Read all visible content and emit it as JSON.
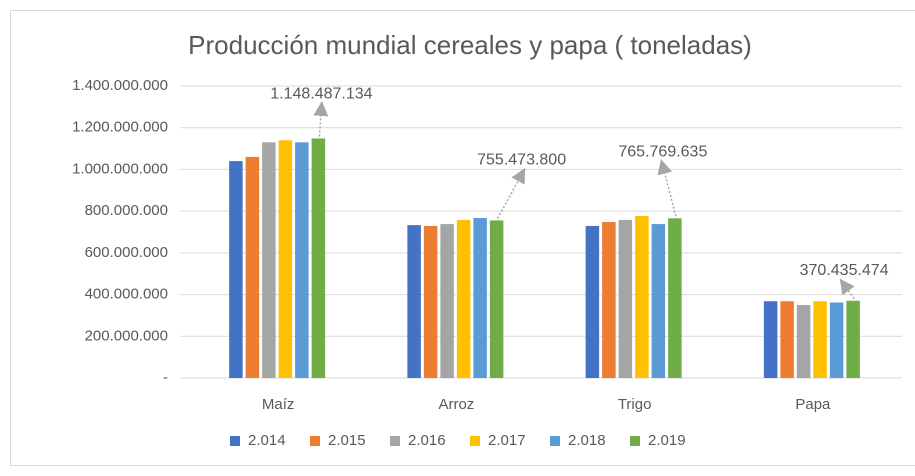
{
  "chart_data": {
    "type": "bar",
    "title": "Producción mundial cereales y papa ( toneladas)",
    "categories": [
      "Maíz",
      "Arroz",
      "Trigo",
      "Papa"
    ],
    "series": [
      {
        "name": "2.014",
        "color": "#4472c4",
        "values": [
          1040000000,
          733000000,
          729000000,
          368000000
        ]
      },
      {
        "name": "2.015",
        "color": "#ed7d31",
        "values": [
          1060000000,
          729000000,
          748000000,
          368000000
        ]
      },
      {
        "name": "2.016",
        "color": "#a5a5a5",
        "values": [
          1130000000,
          738000000,
          758000000,
          350000000
        ]
      },
      {
        "name": "2.017",
        "color": "#ffc000",
        "values": [
          1140000000,
          758000000,
          777000000,
          368000000
        ]
      },
      {
        "name": "2.018",
        "color": "#5b9bd5",
        "values": [
          1130000000,
          767000000,
          738000000,
          362000000
        ]
      },
      {
        "name": "2.019",
        "color": "#70ad47",
        "values": [
          1148487134,
          755473800,
          765769635,
          370435474
        ],
        "value_labels": [
          "1.148.487.134",
          "755.473.800",
          "765.769.635",
          "370.435.474"
        ]
      }
    ],
    "ylim": [
      0,
      1400000000
    ],
    "yticks": [
      {
        "value": 0,
        "label": "-"
      },
      {
        "value": 200000000,
        "label": "200.000.000"
      },
      {
        "value": 400000000,
        "label": "400.000.000"
      },
      {
        "value": 600000000,
        "label": "600.000.000"
      },
      {
        "value": 800000000,
        "label": "800.000.000"
      },
      {
        "value": 1000000000,
        "label": "1.000.000.000"
      },
      {
        "value": 1200000000,
        "label": "1.200.000.000"
      },
      {
        "value": 1400000000,
        "label": "1.400.000.000"
      }
    ],
    "grid": true,
    "legend": "bottom"
  }
}
